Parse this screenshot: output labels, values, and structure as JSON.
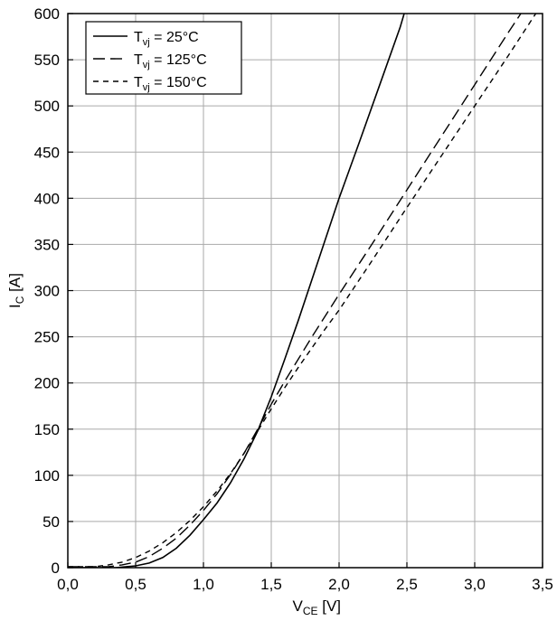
{
  "chart_data": {
    "type": "line",
    "title": "",
    "xlabel_parts": {
      "main": "V",
      "sub": "CE",
      "rest": " [V]"
    },
    "ylabel_parts": {
      "main": "I",
      "sub": "C",
      "rest": " [A]"
    },
    "xlim": [
      0,
      3.5
    ],
    "ylim": [
      0,
      600
    ],
    "grid": true,
    "legend_position": "top-left",
    "x_tick_values": [
      0,
      0.5,
      1.0,
      1.5,
      2.0,
      2.5,
      3.0,
      3.5
    ],
    "x_tick_labels": [
      "0,0",
      "0,5",
      "1,0",
      "1,5",
      "2,0",
      "2,5",
      "3,0",
      "3,5"
    ],
    "y_tick_values": [
      0,
      50,
      100,
      150,
      200,
      250,
      300,
      350,
      400,
      450,
      500,
      550,
      600
    ],
    "y_tick_labels": [
      "0",
      "50",
      "100",
      "150",
      "200",
      "250",
      "300",
      "350",
      "400",
      "450",
      "500",
      "550",
      "600"
    ],
    "colors": {
      "line": "#000000",
      "grid": "#aaaaaa",
      "frame": "#000000",
      "background": "#ffffff"
    },
    "series": [
      {
        "name_parts": {
          "main": "T",
          "sub": "vj",
          "rest": " = 25°C"
        },
        "dash": "solid",
        "points": [
          [
            0,
            0
          ],
          [
            0.35,
            0
          ],
          [
            0.5,
            2
          ],
          [
            0.6,
            5
          ],
          [
            0.7,
            11
          ],
          [
            0.8,
            21
          ],
          [
            0.9,
            35
          ],
          [
            1.0,
            52
          ],
          [
            1.1,
            70
          ],
          [
            1.2,
            92
          ],
          [
            1.3,
            118
          ],
          [
            1.4,
            148
          ],
          [
            1.5,
            185
          ],
          [
            1.6,
            226
          ],
          [
            1.7,
            268
          ],
          [
            1.8,
            312
          ],
          [
            1.9,
            356
          ],
          [
            2.0,
            400
          ],
          [
            2.15,
            461
          ],
          [
            2.3,
            523
          ],
          [
            2.45,
            585
          ],
          [
            2.48,
            600
          ]
        ]
      },
      {
        "name_parts": {
          "main": "T",
          "sub": "vj",
          "rest": " = 125°C"
        },
        "dash": "long-dash",
        "points": [
          [
            0,
            1
          ],
          [
            0.3,
            1
          ],
          [
            0.4,
            3
          ],
          [
            0.5,
            6
          ],
          [
            0.6,
            12
          ],
          [
            0.7,
            21
          ],
          [
            0.8,
            32
          ],
          [
            0.9,
            46
          ],
          [
            1.0,
            62
          ],
          [
            1.1,
            80
          ],
          [
            1.2,
            101
          ],
          [
            1.3,
            124
          ],
          [
            1.4,
            150
          ],
          [
            1.5,
            177
          ],
          [
            1.6,
            202
          ],
          [
            1.7,
            226
          ],
          [
            1.8,
            250
          ],
          [
            1.9,
            273
          ],
          [
            2.0,
            296
          ],
          [
            2.25,
            352
          ],
          [
            2.5,
            409
          ],
          [
            2.75,
            466
          ],
          [
            3.0,
            523
          ],
          [
            3.25,
            580
          ],
          [
            3.34,
            600
          ]
        ]
      },
      {
        "name_parts": {
          "main": "T",
          "sub": "vj",
          "rest": " = 150°C"
        },
        "dash": "short-dash",
        "points": [
          [
            0,
            1
          ],
          [
            0.2,
            1
          ],
          [
            0.3,
            3
          ],
          [
            0.4,
            6
          ],
          [
            0.5,
            11
          ],
          [
            0.6,
            18
          ],
          [
            0.7,
            27
          ],
          [
            0.8,
            38
          ],
          [
            0.9,
            51
          ],
          [
            1.0,
            66
          ],
          [
            1.1,
            83
          ],
          [
            1.2,
            102
          ],
          [
            1.3,
            124
          ],
          [
            1.4,
            148
          ],
          [
            1.5,
            172
          ],
          [
            1.6,
            195
          ],
          [
            1.7,
            217
          ],
          [
            1.8,
            238
          ],
          [
            1.9,
            259
          ],
          [
            2.0,
            279
          ],
          [
            2.25,
            334
          ],
          [
            2.5,
            390
          ],
          [
            2.75,
            445
          ],
          [
            3.0,
            500
          ],
          [
            3.25,
            555
          ],
          [
            3.45,
            600
          ]
        ]
      }
    ]
  }
}
